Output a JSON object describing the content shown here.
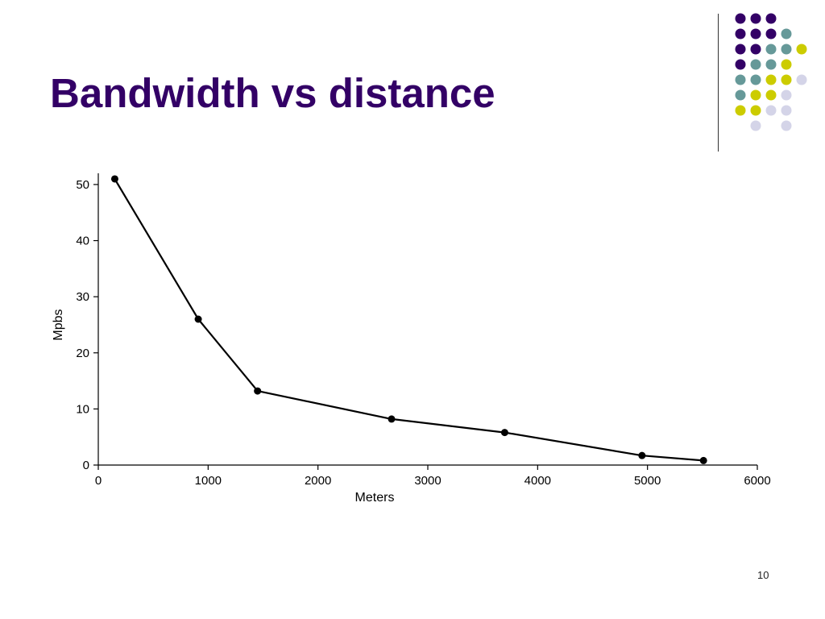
{
  "slide": {
    "title": "Bandwidth vs distance",
    "page_number": "10"
  },
  "decoration": {
    "colors": {
      "purple": "#330066",
      "teal": "#669999",
      "yellow": "#cccc00",
      "lavender": "#d4d4e8"
    },
    "dot_rows": [
      [
        "purple",
        "purple",
        "purple",
        null,
        null
      ],
      [
        "purple",
        "purple",
        "purple",
        "teal",
        null
      ],
      [
        "purple",
        "purple",
        "teal",
        "teal",
        "yellow"
      ],
      [
        "purple",
        "teal",
        "teal",
        "yellow",
        null
      ],
      [
        "teal",
        "teal",
        "yellow",
        "yellow",
        "lavender"
      ],
      [
        "teal",
        "yellow",
        "yellow",
        "lavender",
        null
      ],
      [
        "yellow",
        "yellow",
        "lavender",
        "lavender",
        null
      ],
      [
        null,
        "lavender",
        null,
        "lavender",
        null
      ]
    ]
  },
  "chart_data": {
    "type": "line",
    "title": "",
    "xlabel": "Meters",
    "ylabel": "Mpbs",
    "xlim": [
      0,
      6000
    ],
    "ylim": [
      0,
      52
    ],
    "x_ticks": [
      0,
      1000,
      2000,
      3000,
      4000,
      5000,
      6000
    ],
    "y_ticks": [
      0,
      10,
      20,
      30,
      40,
      50
    ],
    "grid": false,
    "line_color": "#000000",
    "x": [
      150,
      910,
      1450,
      2670,
      3700,
      4950,
      5510
    ],
    "values": [
      51,
      26,
      13.2,
      8.2,
      5.8,
      1.7,
      0.8
    ]
  }
}
